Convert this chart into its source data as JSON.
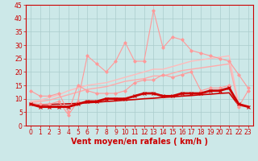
{
  "bg_color": "#cce8e8",
  "grid_color": "#aacccc",
  "xlabel": "Vent moyen/en rafales ( km/h )",
  "xlim": [
    -0.5,
    23.5
  ],
  "ylim": [
    0,
    45
  ],
  "yticks": [
    0,
    5,
    10,
    15,
    20,
    25,
    30,
    35,
    40,
    45
  ],
  "xticks": [
    0,
    1,
    2,
    3,
    4,
    5,
    6,
    7,
    8,
    9,
    10,
    11,
    12,
    13,
    14,
    15,
    16,
    17,
    18,
    19,
    20,
    21,
    22,
    23
  ],
  "x": [
    0,
    1,
    2,
    3,
    4,
    5,
    6,
    7,
    8,
    9,
    10,
    11,
    12,
    13,
    14,
    15,
    16,
    17,
    18,
    19,
    20,
    21,
    22,
    23
  ],
  "series": [
    {
      "y": [
        13,
        11,
        11,
        12,
        5,
        15,
        13,
        12,
        12,
        12,
        13,
        16,
        17,
        17,
        19,
        18,
        19,
        20,
        13,
        14,
        14,
        15,
        7,
        13
      ],
      "color": "#ff9999",
      "lw": 0.8,
      "marker": "D",
      "ms": 1.8,
      "zorder": 3
    },
    {
      "y": [
        8,
        8,
        8,
        9,
        4,
        9,
        26,
        23,
        20,
        24,
        31,
        24,
        24,
        43,
        29,
        33,
        32,
        28,
        27,
        26,
        25,
        24,
        19,
        14
      ],
      "color": "#ff9999",
      "lw": 0.8,
      "marker": "D",
      "ms": 1.8,
      "zorder": 3
    },
    {
      "y": [
        8.0,
        7.8,
        7.9,
        8.0,
        8.1,
        8.3,
        8.5,
        8.7,
        9.0,
        9.2,
        9.5,
        9.7,
        10.0,
        10.2,
        10.5,
        10.7,
        11.0,
        11.2,
        11.5,
        11.7,
        12.0,
        12.2,
        7.5,
        7.2
      ],
      "color": "#cc0000",
      "lw": 1.2,
      "marker": null,
      "ms": 0,
      "zorder": 2
    },
    {
      "y": [
        8.5,
        9.0,
        9.5,
        10.5,
        11.5,
        12.5,
        13.5,
        14.0,
        14.5,
        15.5,
        16.5,
        17.0,
        17.5,
        18.5,
        18.5,
        19.5,
        20.5,
        21.0,
        21.5,
        22.0,
        22.5,
        23.0,
        7.5,
        7.0
      ],
      "color": "#ffaaaa",
      "lw": 1.0,
      "marker": null,
      "ms": 0,
      "zorder": 2
    },
    {
      "y": [
        9.0,
        9.5,
        10.5,
        11.5,
        13.0,
        14.0,
        15.0,
        15.5,
        16.0,
        17.0,
        18.0,
        19.0,
        20.0,
        21.0,
        21.0,
        22.0,
        23.0,
        24.0,
        24.5,
        25.0,
        25.5,
        26.0,
        8.0,
        7.5
      ],
      "color": "#ffbbbb",
      "lw": 1.0,
      "marker": null,
      "ms": 0,
      "zorder": 2
    },
    {
      "y": [
        8,
        7,
        7,
        7,
        7,
        8,
        9,
        9,
        10,
        10,
        10,
        11,
        12,
        12,
        11,
        11,
        12,
        12,
        12,
        13,
        13,
        14,
        8,
        7
      ],
      "color": "#cc0000",
      "lw": 2.0,
      "marker": "x",
      "ms": 3.0,
      "zorder": 4,
      "mew": 0.8
    }
  ],
  "wind_angles": [
    45,
    50,
    55,
    60,
    65,
    70,
    75,
    80,
    85,
    90,
    95,
    100,
    105,
    110,
    115,
    120,
    125,
    130,
    135,
    140,
    145,
    150,
    155,
    160
  ],
  "xlabel_color": "#cc0000",
  "xlabel_fontsize": 7,
  "tick_color": "#cc0000",
  "tick_fontsize": 5.5,
  "axis_color": "#cc0000"
}
